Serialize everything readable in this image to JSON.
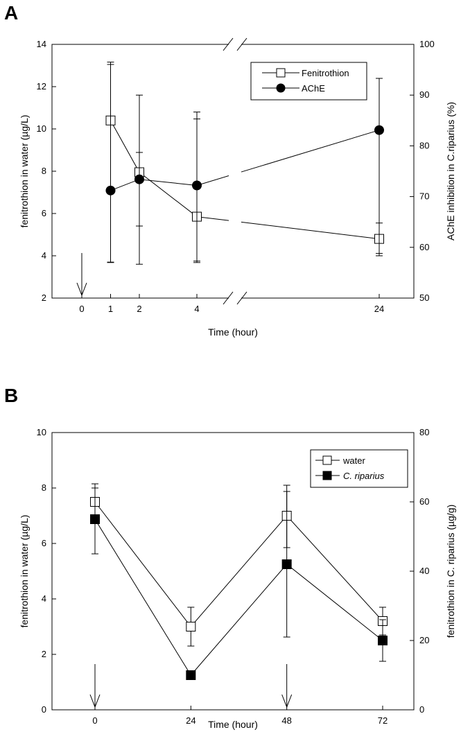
{
  "chart_data": [
    {
      "panel_label": "A",
      "type": "line",
      "xlabel": "Time (hour)",
      "ylabel_left": "fenitrothion in water (µg/L)",
      "ylabel_right": "AChE inhibition in C.riparius (%)",
      "ylim_left": [
        2,
        14
      ],
      "ylim_right": [
        50,
        100
      ],
      "yticks_left": [
        "2",
        "4",
        "6",
        "8",
        "10",
        "12",
        "14"
      ],
      "yticks_right": [
        "50",
        "60",
        "70",
        "80",
        "90",
        "100"
      ],
      "xticks": [
        "0",
        "1",
        "2",
        "4",
        "24"
      ],
      "x_axis_break": true,
      "legend_position": "top-right",
      "series": [
        {
          "name": "Fenitrothion",
          "axis": "left",
          "marker": "open-square",
          "x": [
            1,
            2,
            4,
            24
          ],
          "values": [
            10.4,
            7.95,
            5.85,
            4.8
          ],
          "err_low": [
            3.7,
            3.6,
            3.75,
            4.0
          ],
          "err_high": [
            13.05,
            11.6,
            10.8,
            5.55
          ]
        },
        {
          "name": "AChE",
          "axis": "right",
          "marker": "filled-circle",
          "x": [
            1,
            2,
            4,
            24
          ],
          "values": [
            71.2,
            73.4,
            72.2,
            83.1
          ],
          "err_low": [
            57.0,
            64.2,
            57.0,
            58.8
          ],
          "err_high": [
            96.5,
            78.7,
            85.3,
            93.3
          ]
        }
      ],
      "annotations": [
        {
          "type": "arrow-down",
          "x": 0,
          "description": "application"
        }
      ]
    },
    {
      "panel_label": "B",
      "type": "line",
      "xlabel": "Time (hour)",
      "ylabel_left": "fenitrothion in water (µg/L)",
      "ylabel_right": "fenitrothion in C. riparius (µg/g)",
      "ylim_left": [
        0,
        10
      ],
      "ylim_right": [
        0,
        80
      ],
      "yticks_left": [
        "0",
        "2",
        "4",
        "6",
        "8",
        "10"
      ],
      "yticks_right": [
        "0",
        "20",
        "40",
        "60",
        "80"
      ],
      "xticks": [
        "0",
        "24",
        "48",
        "72"
      ],
      "legend_position": "top-right",
      "series": [
        {
          "name": "water",
          "axis": "left",
          "marker": "open-square",
          "x": [
            0,
            24,
            48,
            72
          ],
          "values": [
            7.5,
            3.0,
            7.0,
            3.2
          ],
          "err_low": [
            6.85,
            2.3,
            5.85,
            2.7
          ],
          "err_high": [
            8.15,
            3.7,
            8.1,
            3.7
          ]
        },
        {
          "name": "C. riparius",
          "axis": "right",
          "marker": "filled-square",
          "x": [
            0,
            24,
            48,
            72
          ],
          "values": [
            55,
            10,
            42,
            20
          ],
          "err_low": [
            45,
            10,
            21,
            14
          ],
          "err_high": [
            64,
            10,
            63,
            26
          ]
        }
      ],
      "annotations": [
        {
          "type": "arrow-down",
          "x": 0
        },
        {
          "type": "arrow-down",
          "x": 48
        }
      ]
    }
  ]
}
